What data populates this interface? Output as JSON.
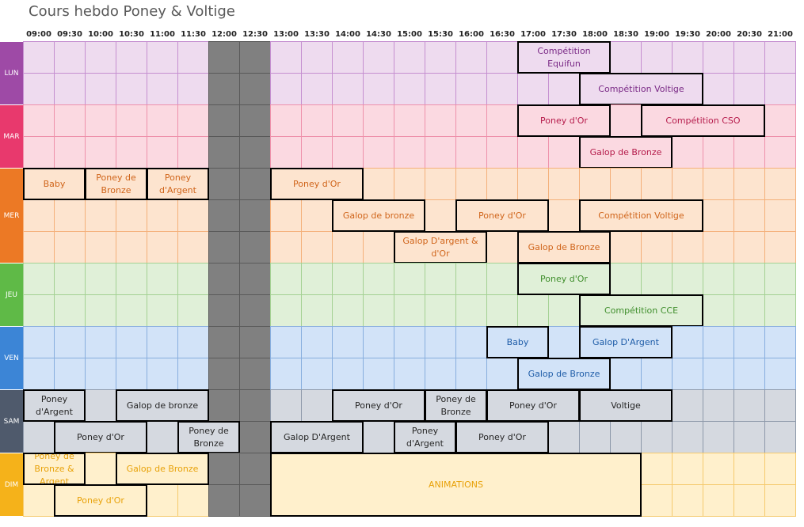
{
  "title": "Cours hebdo Poney & Voltige",
  "times": [
    "09:00",
    "09:30",
    "10:00",
    "10:30",
    "11:00",
    "11:30",
    "12:00",
    "12:30",
    "13:00",
    "13:30",
    "14:00",
    "14:30",
    "15:00",
    "15:30",
    "16:00",
    "16:30",
    "17:00",
    "17:30",
    "18:00",
    "18:30",
    "19:00",
    "19:30",
    "20:00",
    "20:30",
    "21:00"
  ],
  "lunch_color": "#808080",
  "days": [
    {
      "label": "LUN",
      "rows": 2,
      "bg": "#eedbef",
      "line": "#c58fd0",
      "band": "#9e4aa6",
      "text": "#7a2a86",
      "events": [
        {
          "text": "Compétition Equifun",
          "start": 16,
          "end": 19,
          "row": 0
        },
        {
          "text": "Compétition Voltige",
          "start": 18,
          "end": 22,
          "row": 1
        }
      ]
    },
    {
      "label": "MAR",
      "rows": 2,
      "bg": "#fbd9e1",
      "line": "#ee91ab",
      "band": "#e8396d",
      "text": "#b51a4a",
      "events": [
        {
          "text": "Poney d'Or",
          "start": 16,
          "end": 19,
          "row": 0
        },
        {
          "text": "Compétition CSO",
          "start": 20,
          "end": 24,
          "row": 0
        },
        {
          "text": "Galop de Bronze",
          "start": 18,
          "end": 21,
          "row": 1
        }
      ]
    },
    {
      "label": "MER",
      "rows": 3,
      "bg": "#fde4cf",
      "line": "#f4b07a",
      "band": "#ec7925",
      "text": "#d0651b",
      "events": [
        {
          "text": "Baby",
          "start": 0,
          "end": 2,
          "row": 0
        },
        {
          "text": "Poney de Bronze",
          "start": 2,
          "end": 4,
          "row": 0
        },
        {
          "text": "Poney d'Argent",
          "start": 4,
          "end": 6,
          "row": 0
        },
        {
          "text": "Poney d'Or",
          "start": 8,
          "end": 11,
          "row": 0
        },
        {
          "text": "Galop de bronze",
          "start": 10,
          "end": 13,
          "row": 1
        },
        {
          "text": "Poney d'Or",
          "start": 14,
          "end": 17,
          "row": 1
        },
        {
          "text": "Compétition Voltige",
          "start": 18,
          "end": 22,
          "row": 1
        },
        {
          "text": "Galop D'argent & d'Or",
          "start": 12,
          "end": 15,
          "row": 2
        },
        {
          "text": "Galop de Bronze",
          "start": 16,
          "end": 19,
          "row": 2
        }
      ]
    },
    {
      "label": "JEU",
      "rows": 2,
      "bg": "#e0f0d8",
      "line": "#a4d193",
      "band": "#5fba47",
      "text": "#3f8e2c",
      "events": [
        {
          "text": "Poney d'Or",
          "start": 16,
          "end": 19,
          "row": 0
        },
        {
          "text": "Compétition CCE",
          "start": 18,
          "end": 22,
          "row": 1
        }
      ]
    },
    {
      "label": "VEN",
      "rows": 2,
      "bg": "#d2e3f8",
      "line": "#88aede",
      "band": "#3c85d6",
      "text": "#1f5da8",
      "events": [
        {
          "text": "Baby",
          "start": 15,
          "end": 17,
          "row": 0
        },
        {
          "text": "Galop D'Argent",
          "start": 18,
          "end": 21,
          "row": 0
        },
        {
          "text": "Galop de Bronze",
          "start": 16,
          "end": 19,
          "row": 1
        }
      ]
    },
    {
      "label": "SAM",
      "rows": 2,
      "bg": "#d5d9e0",
      "line": "#8e99aa",
      "band": "#4f5a6c",
      "text": "#262626",
      "events": [
        {
          "text": "Poney d'Argent",
          "start": 0,
          "end": 2,
          "row": 0
        },
        {
          "text": "Galop de bronze",
          "start": 3,
          "end": 6,
          "row": 0
        },
        {
          "text": "Poney d'Or",
          "start": 10,
          "end": 13,
          "row": 0
        },
        {
          "text": "Poney de Bronze",
          "start": 13,
          "end": 15,
          "row": 0
        },
        {
          "text": "Poney d'Or",
          "start": 15,
          "end": 18,
          "row": 0
        },
        {
          "text": "Voltige",
          "start": 18,
          "end": 21,
          "row": 0
        },
        {
          "text": "Poney d'Or",
          "start": 1,
          "end": 4,
          "row": 1
        },
        {
          "text": "Poney de Bronze",
          "start": 5,
          "end": 7,
          "row": 1
        },
        {
          "text": "Galop D'Argent",
          "start": 8,
          "end": 11,
          "row": 1
        },
        {
          "text": "Poney d'Argent",
          "start": 12,
          "end": 14,
          "row": 1
        },
        {
          "text": "Poney d'Or",
          "start": 14,
          "end": 17,
          "row": 1
        }
      ]
    },
    {
      "label": "DIM",
      "rows": 2,
      "bg": "#fff0cc",
      "line": "#f5ca6e",
      "band": "#f5b21a",
      "text": "#e8a20a",
      "events": [
        {
          "text": "Poney de Bronze & Argent",
          "start": 0,
          "end": 2,
          "row": 0
        },
        {
          "text": "Galop de Bronze",
          "start": 3,
          "end": 6,
          "row": 0
        },
        {
          "text": "ANIMATIONS",
          "start": 8,
          "end": 20,
          "row": 0,
          "rowspan": 2
        },
        {
          "text": "Poney d'Or",
          "start": 1,
          "end": 4,
          "row": 1
        }
      ]
    }
  ]
}
